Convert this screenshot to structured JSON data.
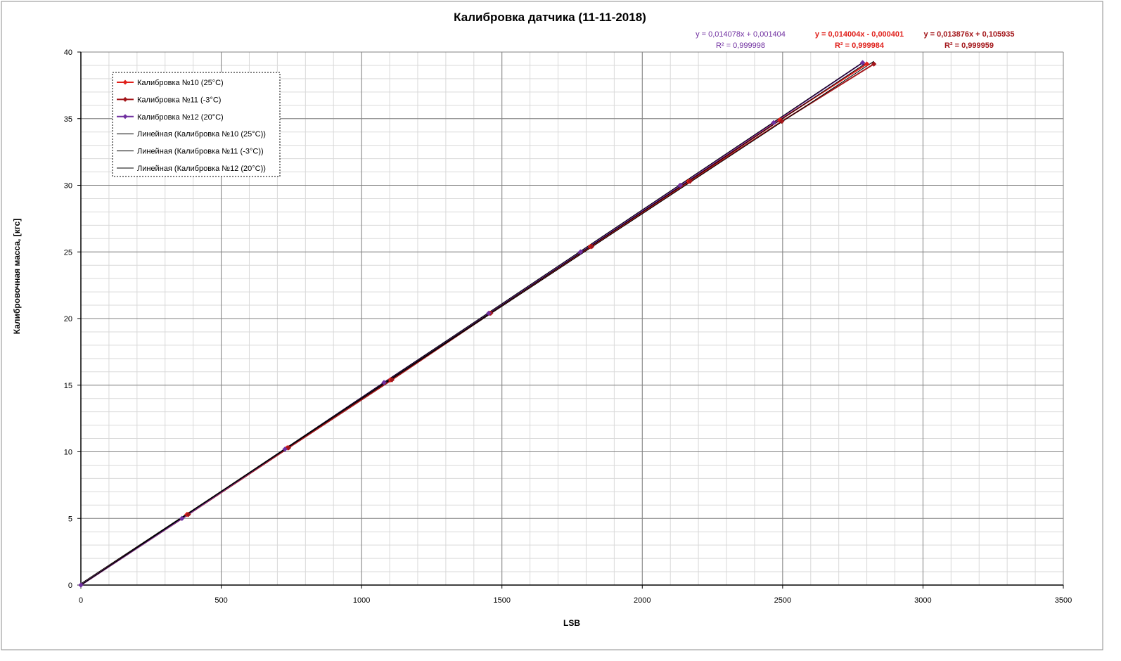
{
  "chart_data": {
    "type": "scatter",
    "title": "Калибровка датчика (11-11-2018)",
    "xlabel": "LSB",
    "ylabel": "Калибровочная масса, [кгс]",
    "xlim": [
      0,
      3500
    ],
    "ylim": [
      0,
      40
    ],
    "x_major_ticks": [
      "0",
      "500",
      "1000",
      "1500",
      "2000",
      "2500",
      "3000",
      "3500"
    ],
    "y_major_ticks": [
      "0",
      "5",
      "10",
      "15",
      "20",
      "25",
      "30",
      "35",
      "40"
    ],
    "x_minor_step": 100,
    "y_minor_step": 1,
    "grid": "major and minor",
    "legend_position": "top-left",
    "series": [
      {
        "name": "Калибровка №10 (25°C)",
        "color": "#e0201b",
        "x": [
          0,
          378,
          735,
          1103,
          1457,
          1815,
          2165,
          2490,
          2800
        ],
        "y": [
          0,
          5.3,
          10.3,
          15.4,
          20.4,
          25.4,
          30.3,
          34.9,
          39.1
        ]
      },
      {
        "name": "Калибровка №11 (-3°C)",
        "color": "#a3161a",
        "x": [
          0,
          383,
          740,
          1108,
          1460,
          1820,
          2170,
          2497,
          2825
        ],
        "y": [
          0,
          5.3,
          10.3,
          15.4,
          20.4,
          25.4,
          30.3,
          34.8,
          39.1
        ]
      },
      {
        "name": "Калибровка №12 (20°C)",
        "color": "#7030a0",
        "x": [
          0,
          360,
          727,
          1080,
          1453,
          1780,
          2135,
          2468,
          2785
        ],
        "y": [
          0,
          5.0,
          10.2,
          15.2,
          20.4,
          25.0,
          30.0,
          34.7,
          39.2
        ]
      }
    ],
    "trendlines": [
      {
        "name": "Линейная (Калибровка  №10 (25°C))",
        "color": "#000000",
        "slope": 0.014004,
        "intercept": -0.000401,
        "x_range": [
          0,
          2800
        ]
      },
      {
        "name": "Линейная (Калибровка  №11 (-3°C))",
        "color": "#000000",
        "slope": 0.013876,
        "intercept": 0.105935,
        "x_range": [
          0,
          2825
        ]
      },
      {
        "name": "Линейная (Калибровка  №12 (20°C))",
        "color": "#000000",
        "slope": 0.014078,
        "intercept": 0.001404,
        "x_range": [
          0,
          2785
        ]
      }
    ],
    "annotations": [
      {
        "line1": "y = 0,014078x + 0,001404",
        "line2": "R² = 0,999998",
        "color": "#7030a0",
        "bold": false
      },
      {
        "line1": "y = 0,014004x - 0,000401",
        "line2": "R² = 0,999984",
        "color": "#e0201b",
        "bold": true
      },
      {
        "line1": "y = 0,013876x + 0,105935",
        "line2": "R² = 0,999959",
        "color": "#a3161a",
        "bold": true
      }
    ]
  }
}
